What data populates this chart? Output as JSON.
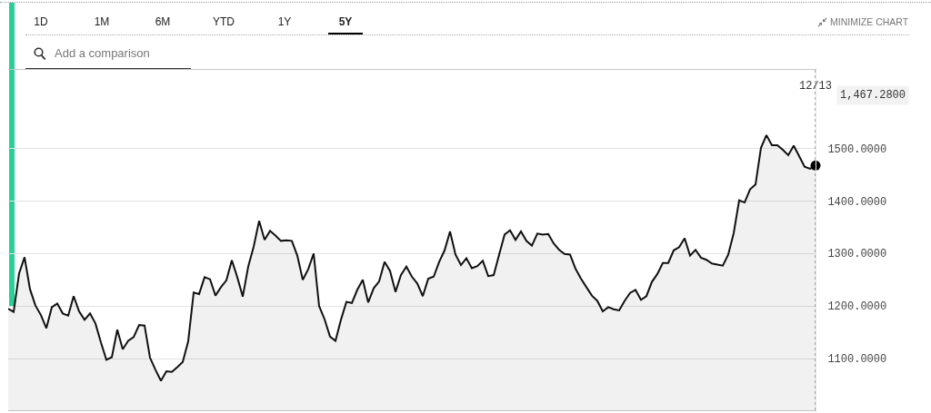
{
  "chart_data": {
    "type": "area",
    "categories": [
      null,
      null,
      null,
      null,
      null,
      null,
      null,
      null,
      null,
      null,
      null,
      null,
      null,
      null,
      null,
      null,
      null,
      null,
      null,
      null,
      null,
      null,
      null,
      null,
      null,
      null,
      null,
      null,
      null,
      null,
      null,
      null,
      null,
      null,
      null,
      null,
      null,
      null,
      null,
      null,
      null,
      null,
      null,
      null,
      null,
      null,
      null,
      null,
      null,
      null,
      null,
      null,
      null,
      null,
      null,
      null,
      null,
      null,
      null,
      null,
      null,
      null,
      null,
      null,
      null,
      null,
      null,
      null,
      null,
      null,
      null,
      null,
      null,
      null,
      null,
      null,
      null,
      null,
      null,
      null,
      null,
      null,
      null,
      null,
      null,
      null,
      null,
      null,
      null,
      null,
      null,
      null,
      null,
      null,
      null,
      null,
      null,
      null,
      null,
      null,
      null,
      null,
      null,
      null,
      null,
      null,
      null,
      null,
      null,
      null,
      null,
      null,
      null,
      null,
      null,
      null,
      null,
      null,
      null,
      null,
      null,
      null,
      null,
      null,
      null,
      null,
      null,
      null,
      null,
      null,
      null,
      null,
      null,
      null,
      null,
      null,
      null,
      null,
      null,
      null,
      null,
      null,
      null,
      null,
      null,
      null,
      null,
      null,
      "12/13"
    ],
    "series": [
      {
        "color": "#111111",
        "values": [
          1195,
          1189,
          1262,
          1293,
          1232,
          1201,
          1183,
          1158,
          1198,
          1205,
          1186,
          1182,
          1219,
          1190,
          1174,
          1186,
          1167,
          1131,
          1098,
          1103,
          1155,
          1118,
          1134,
          1141,
          1164,
          1163,
          1102,
          1079,
          1058,
          1076,
          1075,
          1084,
          1094,
          1133,
          1226,
          1223,
          1255,
          1251,
          1220,
          1236,
          1249,
          1287,
          1255,
          1218,
          1275,
          1313,
          1362,
          1326,
          1343,
          1334,
          1324,
          1325,
          1324,
          1296,
          1250,
          1270,
          1300,
          1200,
          1175,
          1142,
          1134,
          1174,
          1208,
          1206,
          1231,
          1250,
          1207,
          1234,
          1247,
          1284,
          1267,
          1227,
          1259,
          1275,
          1256,
          1243,
          1219,
          1252,
          1256,
          1284,
          1306,
          1342,
          1298,
          1278,
          1291,
          1272,
          1276,
          1286,
          1257,
          1259,
          1298,
          1336,
          1344,
          1326,
          1342,
          1324,
          1315,
          1338,
          1336,
          1337,
          1319,
          1307,
          1299,
          1298,
          1271,
          1252,
          1236,
          1220,
          1210,
          1190,
          1198,
          1194,
          1192,
          1210,
          1225,
          1231,
          1212,
          1219,
          1246,
          1261,
          1282,
          1282,
          1306,
          1312,
          1329,
          1296,
          1307,
          1292,
          1288,
          1281,
          1279,
          1277,
          1298,
          1339,
          1401,
          1397,
          1422,
          1431,
          1501,
          1525,
          1506,
          1506,
          1497,
          1487,
          1505,
          1485,
          1465,
          1461,
          1467.28
        ]
      },
      {
        "type": "scatter",
        "x": [
          "12/13"
        ],
        "values": [
          1467.28
        ],
        "color": "#000000"
      }
    ],
    "ylim": [
      1002,
      1649
    ],
    "yticks": [
      {
        "value": 1100,
        "label": "1100.0000"
      },
      {
        "value": 1200,
        "label": "1200.0000"
      },
      {
        "value": 1300,
        "label": "1300.0000"
      },
      {
        "value": 1400,
        "label": "1400.0000"
      },
      {
        "value": 1500,
        "label": "1500.0000"
      }
    ],
    "grid": "y",
    "ref_lines": [
      {
        "axis": "x",
        "value": "12/13",
        "label": "1,467.2800",
        "line_style": "dotted",
        "color": "#555555"
      }
    ],
    "annotations": [
      "1D",
      "1M",
      "6M",
      "YTD",
      "1Y",
      "5Y",
      "Add a comparison",
      "MINIMIZE CHART"
    ]
  }
}
